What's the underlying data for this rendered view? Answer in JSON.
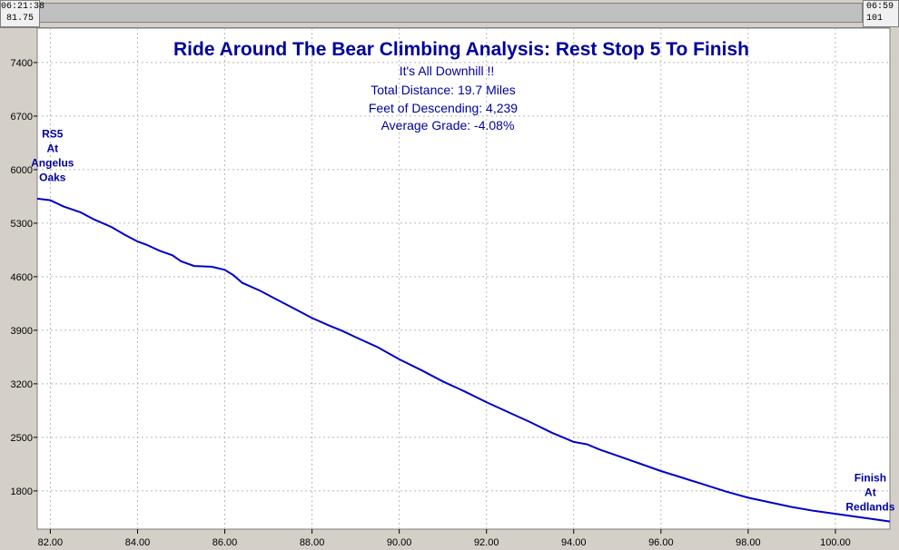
{
  "cursor": {
    "left_time": "06:21:38",
    "left_value": "81.75",
    "right_time": "06:59",
    "right_value": "101"
  },
  "colors": {
    "plot_background": "#ffffff",
    "line": "#0000c8",
    "text": "#00009c",
    "frame": "#d4d0c8"
  },
  "chart_data": {
    "type": "line",
    "title": "Ride Around The Bear Climbing Analysis: Rest Stop 5 To Finish",
    "subtitles": [
      "It's All Downhill !!",
      "Total Distance: 19.7 Miles",
      "Feet of Descending: 4,239",
      "Average Grade: -4.08%"
    ],
    "xlabel": "",
    "ylabel": "",
    "xlim": [
      81.7,
      101.25
    ],
    "ylim": [
      1300,
      7850
    ],
    "x_ticks": [
      82.0,
      84.0,
      86.0,
      88.0,
      90.0,
      92.0,
      94.0,
      96.0,
      98.0,
      100.0
    ],
    "x_tick_labels": [
      "82.00",
      "84.00",
      "86.00",
      "88.00",
      "90.00",
      "92.00",
      "94.00",
      "96.00",
      "98.00",
      "100.00"
    ],
    "y_ticks": [
      1800,
      2500,
      3200,
      3900,
      4600,
      5300,
      6000,
      6700,
      7400
    ],
    "y_tick_labels": [
      "1800",
      "2500",
      "3200",
      "3900",
      "4600",
      "5300",
      "6000",
      "6700",
      "7400"
    ],
    "grid": true,
    "series": [
      {
        "x": [
          81.7,
          82.0,
          82.3,
          82.7,
          83.0,
          83.4,
          83.7,
          84.0,
          84.2,
          84.5,
          84.8,
          85.0,
          85.3,
          85.7,
          86.0,
          86.2,
          86.4,
          86.8,
          87.2,
          87.6,
          88.0,
          88.4,
          88.7,
          89.0,
          89.5,
          90.0,
          90.5,
          91.0,
          91.5,
          92.0,
          92.5,
          93.0,
          93.5,
          94.0,
          94.3,
          94.6,
          95.0,
          95.5,
          96.0,
          96.5,
          97.0,
          97.5,
          98.0,
          98.5,
          99.0,
          99.5,
          100.0,
          100.5,
          101.0,
          101.25
        ],
        "y": [
          5620,
          5600,
          5520,
          5440,
          5350,
          5250,
          5150,
          5060,
          5020,
          4940,
          4880,
          4800,
          4740,
          4730,
          4690,
          4620,
          4520,
          4420,
          4300,
          4180,
          4060,
          3960,
          3890,
          3810,
          3680,
          3520,
          3380,
          3230,
          3100,
          2960,
          2830,
          2700,
          2560,
          2440,
          2410,
          2340,
          2260,
          2160,
          2060,
          1970,
          1880,
          1790,
          1710,
          1650,
          1590,
          1540,
          1500,
          1460,
          1420,
          1400
        ]
      }
    ],
    "annotations": [
      {
        "lines": [
          "RS5",
          "At",
          "Angelus",
          "Oaks"
        ],
        "x": 82.05,
        "y": 6420
      },
      {
        "lines": [
          "Finish",
          "At",
          "Redlands"
        ],
        "x": 100.8,
        "y": 1920
      }
    ]
  }
}
